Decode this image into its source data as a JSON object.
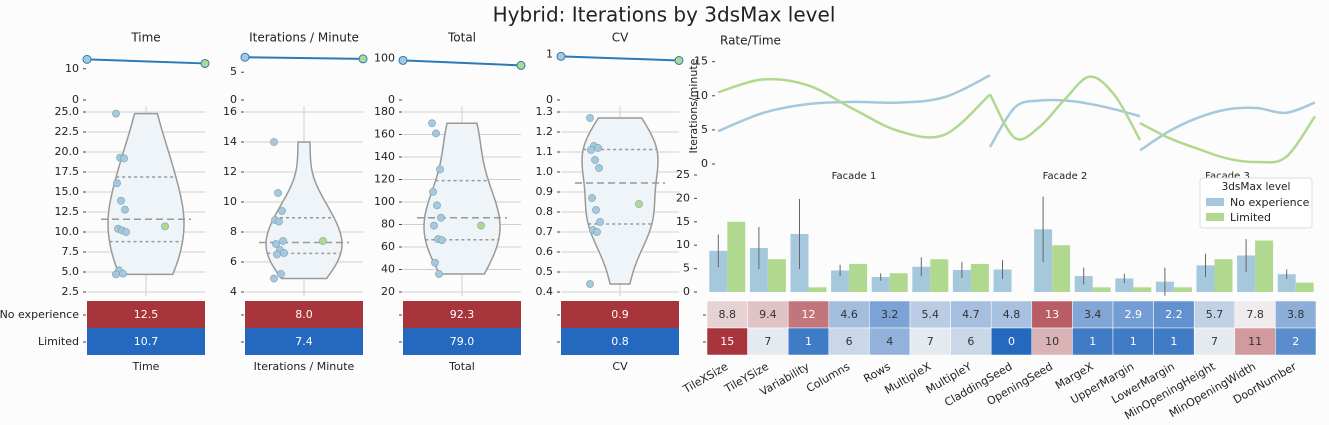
{
  "title": "Hybrid: Iterations by 3dsMax level",
  "groups": [
    "No experience",
    "Limited"
  ],
  "group_colors": [
    "#a6c8dd",
    "#b0d98f"
  ],
  "heat_colors": [
    "#2468bf",
    "#f3f3f3",
    "#a8343c"
  ],
  "chart_data": [
    {
      "type": "violin",
      "title": "Time",
      "xlabel": "Time",
      "trend": {
        "values": [
          13.0,
          11.7
        ],
        "color": "#2a7ab8",
        "ylim": [
          0,
          16
        ],
        "yticks": [
          0,
          10
        ]
      },
      "ylim": [
        2.5,
        25
      ],
      "yticks": [
        2.5,
        {
          "value": 5,
          "label": "5.0"
        },
        7.5,
        {
          "value": 10,
          "label": "10.0"
        },
        12.5,
        {
          "value": 15,
          "label": "15.0"
        },
        17.5,
        {
          "value": 20,
          "label": "20.0"
        },
        22.5,
        {
          "value": 25,
          "label": "25.0"
        }
      ],
      "points": [
        [
          24.8,
          19.3,
          19.2,
          16.1,
          13.9,
          12.8,
          10.4,
          10.2,
          10.0,
          5.2,
          4.8,
          4.7
        ],
        [
          10.7
        ]
      ],
      "heat": {
        "values": [
          12.5,
          10.7
        ],
        "value_labels": [
          "12.5",
          "10.7"
        ]
      }
    },
    {
      "type": "violin",
      "title": "Iterations / Minute",
      "xlabel": "Iterations / Minute",
      "trend": {
        "values": [
          7.7,
          7.4
        ],
        "color": "#2a7ab8",
        "ylim": [
          0,
          9
        ],
        "yticks": [
          0,
          5
        ]
      },
      "ylim": [
        4,
        16
      ],
      "yticks": [
        4,
        6,
        8,
        10,
        12,
        14,
        16
      ],
      "points": [
        [
          14.0,
          10.6,
          9.4,
          8.8,
          8.7,
          7.4,
          7.2,
          6.8,
          6.6,
          6.5,
          5.2,
          4.9
        ],
        [
          7.4
        ]
      ],
      "heat": {
        "values": [
          8.0,
          7.4
        ],
        "value_labels": [
          "8.0",
          "7.4"
        ]
      }
    },
    {
      "type": "violin",
      "title": "Total",
      "xlabel": "Total",
      "trend": {
        "values": [
          95,
          83
        ],
        "color": "#2a7ab8",
        "ylim": [
          0,
          120
        ],
        "yticks": [
          0,
          100
        ]
      },
      "ylim": [
        20,
        180
      ],
      "yticks": [
        20,
        40,
        60,
        80,
        100,
        120,
        140,
        160,
        180
      ],
      "points": [
        [
          170,
          161,
          129,
          109,
          97,
          86,
          79,
          67,
          66,
          46,
          36
        ],
        [
          79
        ]
      ],
      "heat": {
        "values": [
          92.3,
          79.0
        ],
        "value_labels": [
          "92.3",
          "79.0"
        ]
      }
    },
    {
      "type": "violin",
      "title": "CV",
      "xlabel": "CV",
      "trend": {
        "values": [
          0.96,
          0.87
        ],
        "color": "#2a7ab8",
        "ylim": [
          0,
          1.1
        ],
        "yticks": [
          0,
          1
        ]
      },
      "ylim": [
        0.4,
        1.3
      ],
      "yticks": [
        0.4,
        0.5,
        0.6,
        0.7,
        0.8,
        0.9,
        {
          "value": 1,
          "label": "1.0"
        },
        1.1,
        1.2,
        1.3
      ],
      "points": [
        [
          1.27,
          1.13,
          1.12,
          1.11,
          1.06,
          1.02,
          0.87,
          0.81,
          0.75,
          0.71,
          0.7,
          0.44
        ],
        [
          0.84
        ]
      ],
      "heat": {
        "values": [
          0.9,
          0.8
        ],
        "value_labels": [
          "0.9",
          "0.8"
        ]
      }
    },
    {
      "type": "line",
      "title": "Rate/Time",
      "ylabel": "Iterations/minute",
      "ylim": [
        0,
        17
      ],
      "yticks": [
        0,
        5,
        10,
        15
      ],
      "facets": [
        {
          "name": "Facade 1",
          "x": [
            0,
            1,
            2,
            3,
            4,
            5,
            6
          ],
          "xlim": [
            0,
            6
          ],
          "series": [
            {
              "color": "#a6c8dd",
              "values": [
                4.8,
                7.5,
                8.8,
                9.1,
                9.0,
                9.8,
                13.0
              ]
            },
            {
              "color": "#b0d98f",
              "values": [
                10.5,
                12.4,
                11.5,
                8.0,
                4.8,
                4.3,
                10.2
              ]
            }
          ]
        },
        {
          "name": "Facade 2",
          "x": [
            0,
            1,
            2,
            3,
            4,
            5,
            6
          ],
          "xlim": [
            0,
            6
          ],
          "series": [
            {
              "color": "#a6c8dd",
              "values": [
                2.5,
                8.3,
                9.3,
                9.3,
                8.8,
                8.0,
                7.0
              ]
            },
            {
              "color": "#b0d98f",
              "values": [
                10.2,
                3.8,
                5.5,
                9.5,
                12.8,
                10.0,
                3.5
              ]
            }
          ]
        },
        {
          "name": "Facade 3",
          "x": [
            0,
            1,
            2,
            3,
            4,
            5,
            6
          ],
          "xlim": [
            0,
            6
          ],
          "series": [
            {
              "color": "#a6c8dd",
              "values": [
                2.0,
                4.8,
                6.8,
                8.0,
                8.2,
                7.5,
                9.0
              ]
            },
            {
              "color": "#b0d98f",
              "values": [
                6.0,
                3.8,
                2.2,
                0.8,
                0.3,
                1.0,
                7.0
              ]
            }
          ]
        }
      ]
    },
    {
      "type": "bar",
      "categories": [
        "TileXSize",
        "TileYSize",
        "Variability",
        "Columns",
        "Rows",
        "MultipleX",
        "MultipleY",
        "CladdingSeed",
        "OpeningSeed",
        "MargeX",
        "UpperMargin",
        "LowerMargin",
        "MinOpeningHeight",
        "MinOpeningWidth",
        "DoorNumber"
      ],
      "series": [
        {
          "name": "No experience",
          "color": "#a6c8dd",
          "values": [
            8.8,
            9.4,
            12.4,
            4.6,
            3.2,
            5.4,
            4.7,
            4.8,
            13.4,
            3.4,
            2.9,
            2.2,
            5.7,
            7.8,
            3.8
          ],
          "value_labels": [
            "8.8",
            "9.4",
            "12",
            "4.6",
            "3.2",
            "5.4",
            "4.7",
            "4.8",
            "13",
            "3.4",
            "2.9",
            "2.2",
            "5.7",
            "7.8",
            "3.8"
          ],
          "errors": [
            3.5,
            4.5,
            7.5,
            1.2,
            0.8,
            2.0,
            1.7,
            2.0,
            7.0,
            1.8,
            1.0,
            3.0,
            2.5,
            3.5,
            1.0
          ]
        },
        {
          "name": "Limited",
          "color": "#b0d98f",
          "values": [
            15,
            7,
            1,
            6,
            4,
            7,
            6,
            0,
            10,
            1,
            1,
            1,
            7,
            11,
            2
          ]
        }
      ],
      "ylim": [
        0,
        25
      ],
      "yticks": [
        0,
        5,
        10,
        15,
        20,
        25
      ],
      "legend": {
        "title": "3dsMax level",
        "corner": "upper right"
      }
    }
  ]
}
